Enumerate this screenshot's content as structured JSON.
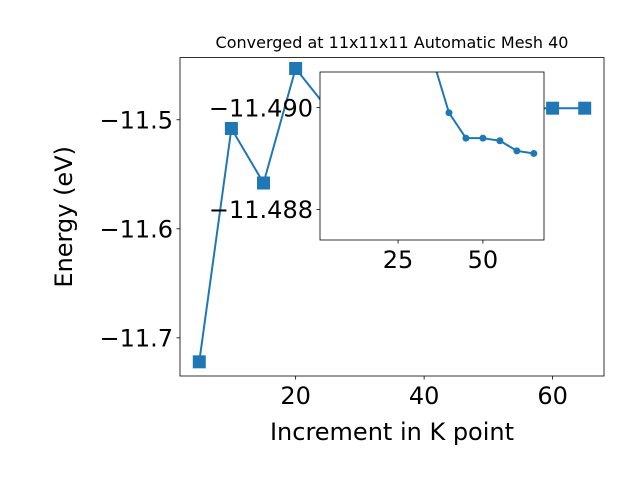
{
  "chart_data": [
    {
      "type": "line",
      "title": "Converged at 11x11x11 Automatic Mesh 40",
      "xlabel": "Increment in K point",
      "ylabel": "Energy (eV)",
      "xlim": [
        2.0,
        68.0
      ],
      "ylim": [
        -11.735,
        -11.443
      ],
      "xticks": [
        20,
        40,
        60
      ],
      "xtick_labels": [
        "20",
        "40",
        "60"
      ],
      "yticks": [
        -11.7,
        -11.6,
        -11.5
      ],
      "ytick_labels": [
        "−11.7",
        "−11.6",
        "−11.5"
      ],
      "grid": false,
      "marker": "square",
      "series": [
        {
          "color": "#1f77b4",
          "x": [
            5,
            10,
            15,
            20,
            25,
            60,
            65
          ],
          "y": [
            -11.722,
            -11.508,
            -11.558,
            -11.453,
            -11.49,
            -11.4894,
            -11.4894
          ]
        }
      ]
    },
    {
      "type": "line",
      "inset": true,
      "xlim": [
        2.0,
        68.0
      ],
      "ylim": [
        -11.4874,
        -11.4907
      ],
      "xticks": [
        25,
        50
      ],
      "xtick_labels": [
        "25",
        "50"
      ],
      "yticks": [
        -11.49,
        -11.488
      ],
      "ytick_labels": [
        "−11.490",
        "−11.488"
      ],
      "grid": false,
      "marker": "circle",
      "series": [
        {
          "color": "#1f77b4",
          "x": [
            35,
            40,
            45,
            50,
            55,
            60,
            65
          ],
          "y": [
            -11.491,
            -11.4899,
            -11.4894,
            -11.4894,
            -11.48935,
            -11.48915,
            -11.4891
          ]
        }
      ]
    }
  ]
}
